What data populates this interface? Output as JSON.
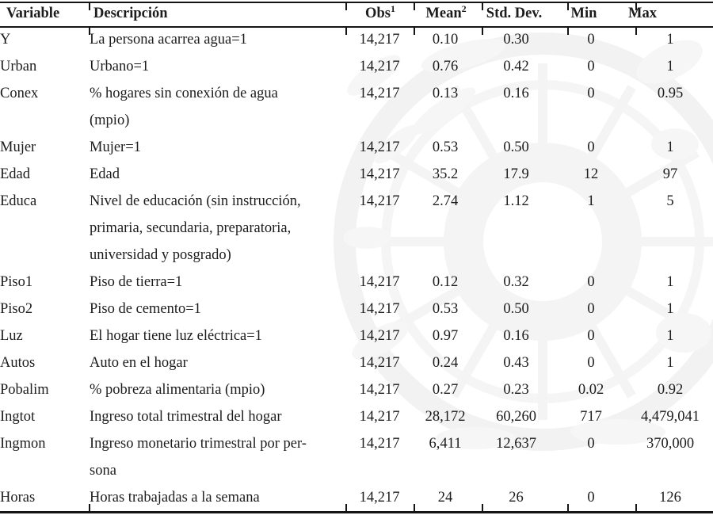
{
  "table": {
    "columns": {
      "variable": "Variable",
      "descripcion": "Descripción",
      "obs": "Obs",
      "obs_note": "1",
      "mean": "Mean",
      "mean_note": "2",
      "std_dev": "Std. Dev.",
      "min": "Min",
      "max": "Max"
    },
    "rows": [
      {
        "variable": "Y",
        "desc_lines": [
          "La persona acarrea agua=1"
        ],
        "obs": "14,217",
        "mean": "0.10",
        "std": "0.30",
        "min": "0",
        "max": "1"
      },
      {
        "variable": "Urban",
        "desc_lines": [
          "Urbano=1"
        ],
        "obs": "14,217",
        "mean": "0.76",
        "std": "0.42",
        "min": "0",
        "max": "1"
      },
      {
        "variable": "Conex",
        "desc_lines": [
          "% hogares sin conexión de agua",
          "(mpio)"
        ],
        "obs": "14,217",
        "mean": "0.13",
        "std": "0.16",
        "min": "0",
        "max": "0.95"
      },
      {
        "variable": "Mujer",
        "desc_lines": [
          "Mujer=1"
        ],
        "obs": "14,217",
        "mean": "0.53",
        "std": "0.50",
        "min": "0",
        "max": "1"
      },
      {
        "variable": "Edad",
        "desc_lines": [
          "Edad"
        ],
        "obs": "14,217",
        "mean": "35.2",
        "std": "17.9",
        "min": "12",
        "max": "97"
      },
      {
        "variable": "Educa",
        "desc_lines": [
          "Nivel de educación (sin instrucción,",
          "primaria, secundaria, preparatoria,",
          "universidad y posgrado)"
        ],
        "obs": "14,217",
        "mean": "2.74",
        "std": "1.12",
        "min": "1",
        "max": "5"
      },
      {
        "variable": "Piso1",
        "desc_lines": [
          "Piso de tierra=1"
        ],
        "obs": "14,217",
        "mean": "0.12",
        "std": "0.32",
        "min": "0",
        "max": "1"
      },
      {
        "variable": "Piso2",
        "desc_lines": [
          "Piso de cemento=1"
        ],
        "obs": "14,217",
        "mean": "0.53",
        "std": "0.50",
        "min": "0",
        "max": "1"
      },
      {
        "variable": "Luz",
        "desc_lines": [
          "El hogar tiene luz eléctrica=1"
        ],
        "obs": "14,217",
        "mean": "0.97",
        "std": "0.16",
        "min": "0",
        "max": "1"
      },
      {
        "variable": "Autos",
        "desc_lines": [
          "Auto en el hogar"
        ],
        "obs": "14,217",
        "mean": "0.24",
        "std": "0.43",
        "min": "0",
        "max": "1"
      },
      {
        "variable": "Pobalim",
        "desc_lines": [
          "% pobreza alimentaria (mpio)"
        ],
        "obs": "14,217",
        "mean": "0.27",
        "std": "0.23",
        "min": "0.02",
        "max": "0.92"
      },
      {
        "variable": "Ingtot",
        "desc_lines": [
          "Ingreso total trimestral del hogar"
        ],
        "obs": "14,217",
        "mean": "28,172",
        "std": "60,260",
        "min": "717",
        "max": "4,479,041"
      },
      {
        "variable": "Ingmon",
        "desc_lines": [
          "Ingreso monetario trimestral por per-",
          "sona"
        ],
        "obs": "14,217",
        "mean": "6,411",
        "std": "12,637",
        "min": "0",
        "max": "370,000"
      },
      {
        "variable": "Horas",
        "desc_lines": [
          "Horas trabajadas a la semana"
        ],
        "obs": "14,217",
        "mean": "24",
        "std": "26",
        "min": "0",
        "max": "126"
      }
    ]
  },
  "colors": {
    "text_color": "#1c1c1c",
    "rule_color": "#141414",
    "watermark_color": "#e9e9e9",
    "background_color": "#ffffff"
  }
}
